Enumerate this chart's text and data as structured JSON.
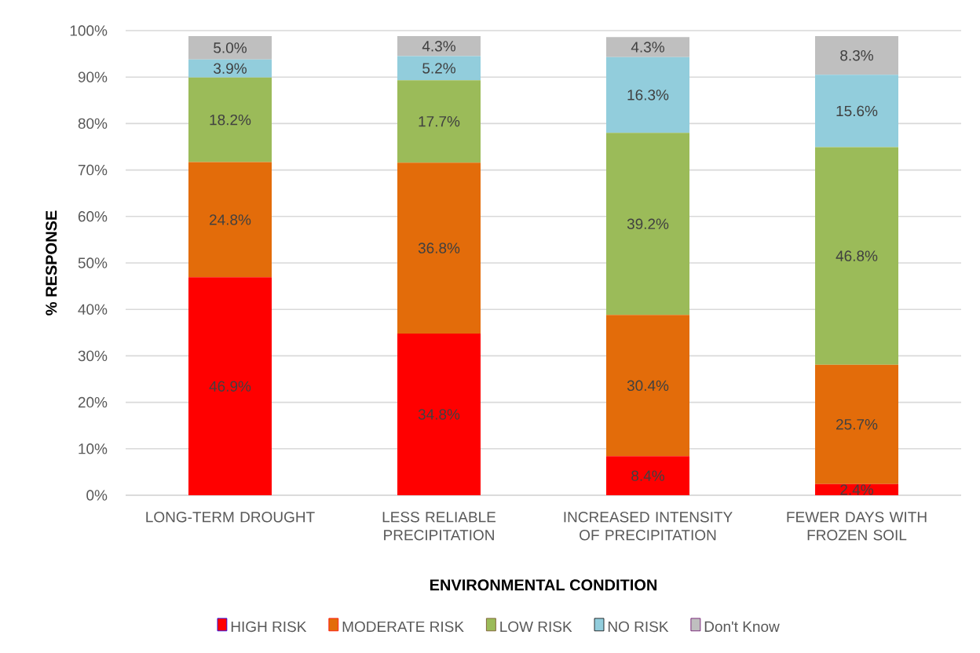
{
  "chart_data": {
    "type": "bar",
    "stacked": true,
    "xlabel": "ENVIRONMENTAL CONDITION",
    "ylabel": "% RESPONSE",
    "categories": [
      "LONG-TERM DROUGHT",
      "LESS RELIABLE PRECIPITATION",
      "INCREASED INTENSITY OF PRECIPITATION",
      "FEWER DAYS WITH FROZEN SOIL"
    ],
    "series": [
      {
        "name": "HIGH RISK",
        "color": "#ff0000",
        "values": [
          46.9,
          34.8,
          8.4,
          2.4
        ],
        "value_labels": [
          "46.9%",
          "34.8%",
          "8.4%",
          "2.4%"
        ]
      },
      {
        "name": "MODERATE RISK",
        "color": "#e36c0a",
        "values": [
          24.8,
          36.8,
          30.4,
          25.7
        ],
        "value_labels": [
          "24.8%",
          "36.8%",
          "30.4%",
          "25.7%"
        ]
      },
      {
        "name": "LOW RISK",
        "color": "#9bbb59",
        "values": [
          18.2,
          17.7,
          39.2,
          46.8
        ],
        "value_labels": [
          "18.2%",
          "17.7%",
          "39.2%",
          "46.8%"
        ]
      },
      {
        "name": "NO RISK",
        "color": "#92cddc",
        "values": [
          3.9,
          5.2,
          16.3,
          15.6
        ],
        "value_labels": [
          "3.9%",
          "5.2%",
          "16.3%",
          "15.6%"
        ]
      },
      {
        "name": "Don't Know",
        "color": "#bfbfbf",
        "values": [
          5.0,
          4.3,
          4.3,
          8.3
        ],
        "value_labels": [
          "5.0%",
          "4.3%",
          "4.3%",
          "8.3%"
        ]
      }
    ],
    "ylim": [
      0,
      100
    ],
    "yticks": [
      {
        "value": 0,
        "label": "0%"
      },
      {
        "value": 10,
        "label": "10%"
      },
      {
        "value": 20,
        "label": "20%"
      },
      {
        "value": 30,
        "label": "30%"
      },
      {
        "value": 40,
        "label": "40%"
      },
      {
        "value": 50,
        "label": "50%"
      },
      {
        "value": 60,
        "label": "60%"
      },
      {
        "value": 70,
        "label": "70%"
      },
      {
        "value": 80,
        "label": "80%"
      },
      {
        "value": 90,
        "label": "90%"
      },
      {
        "value": 100,
        "label": "100%"
      }
    ],
    "grid": "y",
    "legend": "bottom"
  }
}
